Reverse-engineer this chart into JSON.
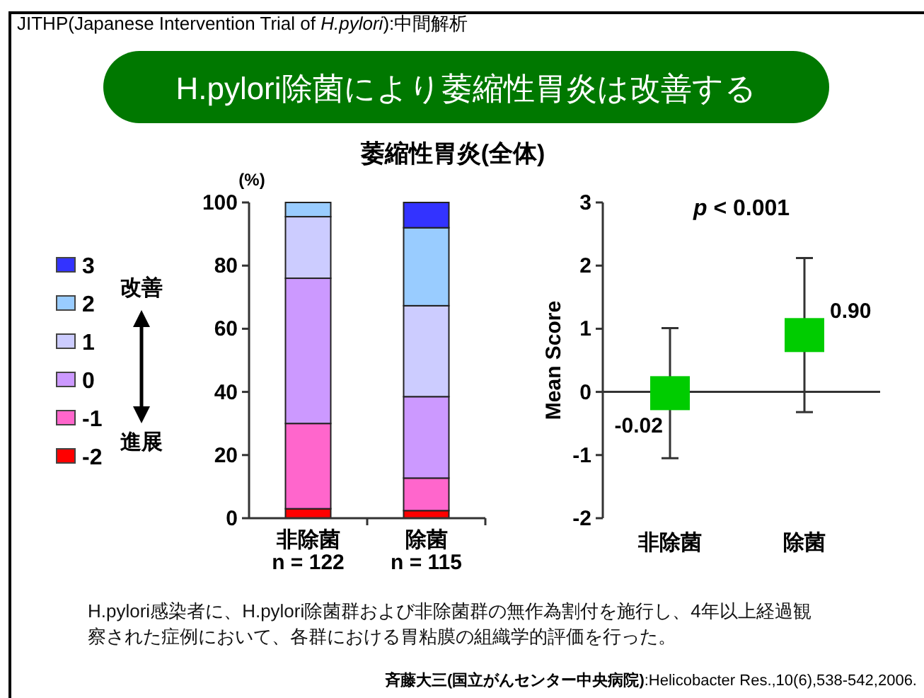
{
  "chart_data": [
    {
      "type": "bar",
      "stacked": true,
      "title": "H.pylori除菌により萎縮性胃炎は改善する",
      "subtitle": "萎縮性胃炎(全体)",
      "ylabel": "(%)",
      "categories": [
        "非除菌\nn = 122",
        "除菌\nn = 115"
      ],
      "series": [
        {
          "name": "-2",
          "color": "#ff0000",
          "values": [
            3,
            2.4
          ]
        },
        {
          "name": "-1",
          "color": "#ff66cc",
          "values": [
            27,
            10.3
          ]
        },
        {
          "name": "0",
          "color": "#cc99ff",
          "values": [
            46,
            25.8
          ]
        },
        {
          "name": "1",
          "color": "#ccccff",
          "values": [
            19.5,
            28.8
          ]
        },
        {
          "name": "2",
          "color": "#99ccff",
          "values": [
            4.5,
            24.7
          ]
        },
        {
          "name": "3",
          "color": "#3333ff",
          "values": [
            0,
            8
          ]
        }
      ],
      "ylim": [
        0,
        100
      ],
      "yticks": [
        0,
        20,
        40,
        60,
        80,
        100
      ],
      "legend": "left",
      "annotations": [
        "JITHP(Japanese Intervention Trial of *H.pylori*):中間解析",
        "H.pylori感染者に、H.pylori除菌群および非除菌群の無作為割付を施行し、4年以上経過観察された症例において、各群における胃粘膜の組織学的評価を行った。",
        "**斉藤大三(国立がんセンター中央病院)**:Helicobacter Res.,10(6),538-542,2006.",
        "改善",
        "進展"
      ]
    },
    {
      "type": "scatter",
      "marker": "square",
      "ylabel": "Mean Score",
      "categories": [
        "非除菌",
        "除菌"
      ],
      "series": [
        {
          "color": "#00cc00",
          "values": [
            -0.02,
            0.9
          ],
          "errors": [
            1.03,
            1.22
          ],
          "value_labels": [
            "-0.02",
            "0.90"
          ]
        }
      ],
      "ylim": [
        -2,
        3
      ],
      "yticks": [
        -2,
        -1,
        0,
        1,
        2,
        3
      ],
      "annotations": [
        "*p* < 0.001"
      ]
    }
  ]
}
